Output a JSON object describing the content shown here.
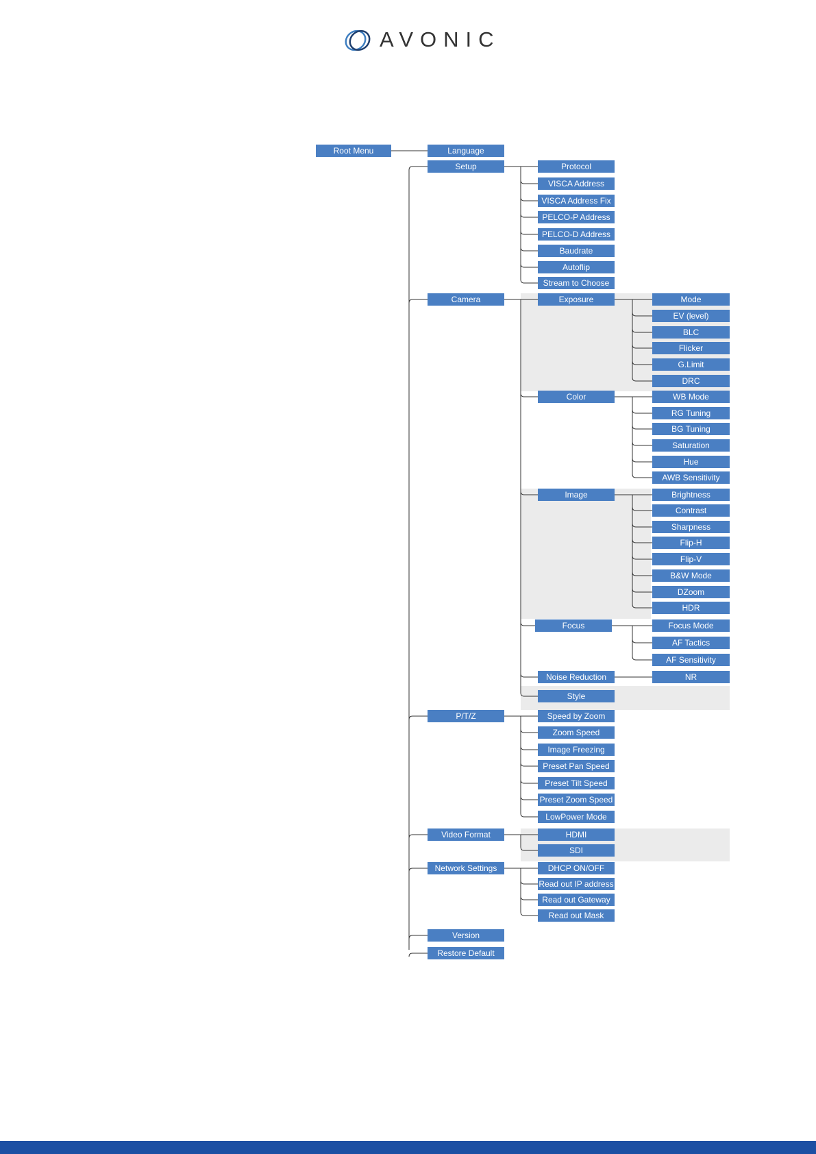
{
  "brand": {
    "name": "AVONIC"
  },
  "menu": {
    "root": "Root Menu",
    "level1": [
      "Language",
      "Setup",
      "Camera",
      "P/T/Z",
      "Video Format",
      "Network Settings",
      "Version",
      "Restore Default"
    ],
    "setup": [
      "Protocol",
      "VISCA Address",
      "VISCA Address Fix",
      "PELCO-P Address",
      "PELCO-D Address",
      "Baudrate",
      "Autoflip",
      "Stream to Choose"
    ],
    "camera": [
      "Exposure",
      "Color",
      "Image",
      "Focus",
      "Noise Reduction",
      "Style"
    ],
    "exposure": [
      "Mode",
      "EV (level)",
      "BLC",
      "Flicker",
      "G.Limit",
      "DRC"
    ],
    "color": [
      "WB Mode",
      "RG Tuning",
      "BG Tuning",
      "Saturation",
      "Hue",
      "AWB Sensitivity"
    ],
    "image": [
      "Brightness",
      "Contrast",
      "Sharpness",
      "Flip-H",
      "Flip-V",
      "B&W Mode",
      "DZoom",
      "HDR"
    ],
    "focus": [
      "Focus Mode",
      "AF Tactics",
      "AF Sensitivity"
    ],
    "noise_reduction": [
      "NR"
    ],
    "ptz": [
      "Speed by Zoom",
      "Zoom Speed",
      "Image Freezing",
      "Preset Pan Speed",
      "Preset Tilt Speed",
      "Preset Zoom Speed",
      "LowPower Mode"
    ],
    "video_format": [
      "HDMI",
      "SDI"
    ],
    "network": [
      "DHCP ON/OFF",
      "Read out IP address",
      "Read out Gateway",
      "Read out Mask"
    ]
  },
  "colors": {
    "box": "#4a7fc3",
    "footer": "#1c4fa3",
    "shade": "#ebebeb"
  }
}
